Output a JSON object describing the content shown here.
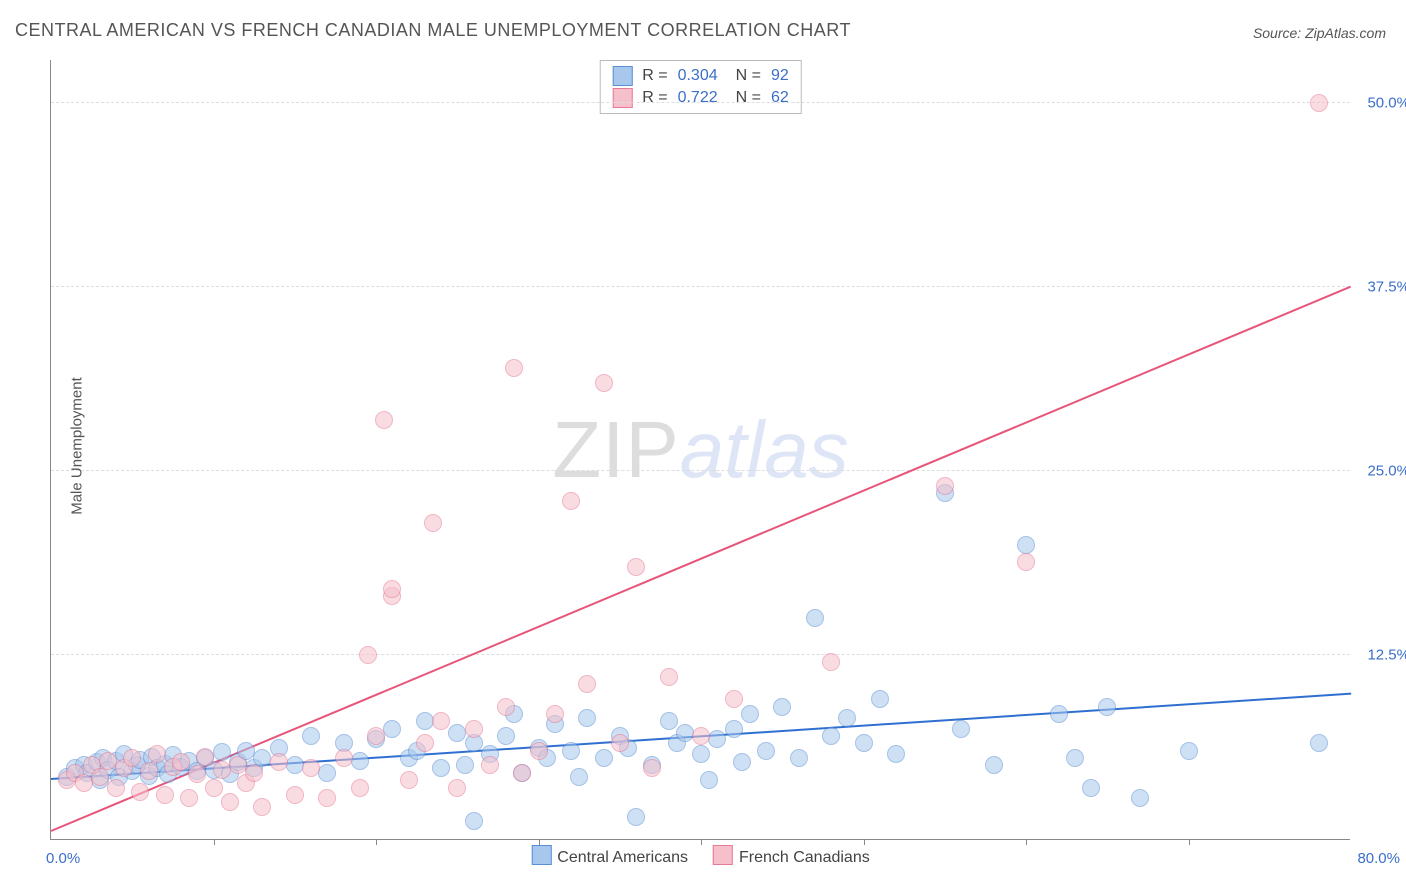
{
  "title": "CENTRAL AMERICAN VS FRENCH CANADIAN MALE UNEMPLOYMENT CORRELATION CHART",
  "source_label": "Source: ZipAtlas.com",
  "ylabel": "Male Unemployment",
  "watermark": {
    "part1": "ZIP",
    "part2": "atlas"
  },
  "chart": {
    "type": "scatter",
    "xlim": [
      0,
      80
    ],
    "ylim": [
      0,
      53
    ],
    "x_min_label": "0.0%",
    "x_max_label": "80.0%",
    "xtick_positions": [
      10,
      20,
      30,
      40,
      50,
      60,
      70
    ],
    "y_gridlines": [
      12.5,
      25.0,
      37.5,
      50.0
    ],
    "y_tick_labels": [
      "12.5%",
      "25.0%",
      "37.5%",
      "50.0%"
    ],
    "background_color": "#ffffff",
    "grid_color": "#dddddd",
    "axis_color": "#888888",
    "tick_label_color": "#3b6fc9",
    "marker_radius": 9,
    "marker_opacity": 0.55,
    "series": [
      {
        "id": "central_americans",
        "label": "Central Americans",
        "fill_color": "#a7c7ec",
        "stroke_color": "#5a8fd6",
        "trend_color": "#2f6fd0",
        "trend": {
          "x0": 0,
          "y0": 4.0,
          "x1": 80,
          "y1": 9.8
        },
        "stats": {
          "R": "0.304",
          "N": "92"
        },
        "points": [
          [
            1,
            4.2
          ],
          [
            1.5,
            4.8
          ],
          [
            2,
            5.0
          ],
          [
            2.2,
            4.5
          ],
          [
            2.8,
            5.2
          ],
          [
            3,
            4.0
          ],
          [
            3.2,
            5.5
          ],
          [
            3.5,
            4.7
          ],
          [
            4,
            5.3
          ],
          [
            4.2,
            4.2
          ],
          [
            4.5,
            5.8
          ],
          [
            5,
            4.6
          ],
          [
            5.3,
            5.0
          ],
          [
            5.5,
            5.4
          ],
          [
            6,
            4.3
          ],
          [
            6.2,
            5.6
          ],
          [
            6.5,
            4.8
          ],
          [
            7,
            5.1
          ],
          [
            7.2,
            4.4
          ],
          [
            7.5,
            5.7
          ],
          [
            8,
            4.9
          ],
          [
            8.5,
            5.3
          ],
          [
            9,
            4.6
          ],
          [
            9.5,
            5.5
          ],
          [
            10,
            4.7
          ],
          [
            10.5,
            5.9
          ],
          [
            11,
            4.4
          ],
          [
            11.5,
            5.2
          ],
          [
            12,
            6.0
          ],
          [
            12.5,
            4.8
          ],
          [
            13,
            5.5
          ],
          [
            14,
            6.2
          ],
          [
            15,
            5.0
          ],
          [
            16,
            7.0
          ],
          [
            17,
            4.5
          ],
          [
            18,
            6.5
          ],
          [
            19,
            5.3
          ],
          [
            20,
            6.8
          ],
          [
            21,
            7.5
          ],
          [
            22,
            5.5
          ],
          [
            22.5,
            6.0
          ],
          [
            23,
            8.0
          ],
          [
            24,
            4.8
          ],
          [
            25,
            7.2
          ],
          [
            25.5,
            5.0
          ],
          [
            26,
            6.5
          ],
          [
            26,
            1.2
          ],
          [
            27,
            5.8
          ],
          [
            28,
            7.0
          ],
          [
            28.5,
            8.5
          ],
          [
            29,
            4.5
          ],
          [
            30,
            6.2
          ],
          [
            30.5,
            5.5
          ],
          [
            31,
            7.8
          ],
          [
            32,
            6.0
          ],
          [
            32.5,
            4.2
          ],
          [
            33,
            8.2
          ],
          [
            34,
            5.5
          ],
          [
            35,
            7.0
          ],
          [
            35.5,
            6.2
          ],
          [
            36,
            1.5
          ],
          [
            37,
            5.0
          ],
          [
            38,
            8.0
          ],
          [
            38.5,
            6.5
          ],
          [
            39,
            7.2
          ],
          [
            40,
            5.8
          ],
          [
            40.5,
            4.0
          ],
          [
            41,
            6.8
          ],
          [
            42,
            7.5
          ],
          [
            42.5,
            5.2
          ],
          [
            43,
            8.5
          ],
          [
            44,
            6.0
          ],
          [
            45,
            9.0
          ],
          [
            46,
            5.5
          ],
          [
            47,
            15.0
          ],
          [
            48,
            7.0
          ],
          [
            49,
            8.2
          ],
          [
            50,
            6.5
          ],
          [
            51,
            9.5
          ],
          [
            52,
            5.8
          ],
          [
            55,
            23.5
          ],
          [
            56,
            7.5
          ],
          [
            58,
            5.0
          ],
          [
            60,
            20.0
          ],
          [
            62,
            8.5
          ],
          [
            63,
            5.5
          ],
          [
            64,
            3.5
          ],
          [
            65,
            9.0
          ],
          [
            67,
            2.8
          ],
          [
            70,
            6.0
          ],
          [
            78,
            6.5
          ]
        ]
      },
      {
        "id": "french_canadians",
        "label": "French Canadians",
        "fill_color": "#f5c0cb",
        "stroke_color": "#e77a95",
        "trend_color": "#e7557a",
        "trend": {
          "x0": 0,
          "y0": 0.5,
          "x1": 80,
          "y1": 37.5
        },
        "stats": {
          "R": "0.722",
          "N": "62"
        },
        "points": [
          [
            1,
            4.0
          ],
          [
            1.5,
            4.5
          ],
          [
            2,
            3.8
          ],
          [
            2.5,
            5.0
          ],
          [
            3,
            4.2
          ],
          [
            3.5,
            5.3
          ],
          [
            4,
            3.5
          ],
          [
            4.5,
            4.8
          ],
          [
            5,
            5.5
          ],
          [
            5.5,
            3.2
          ],
          [
            6,
            4.6
          ],
          [
            6.5,
            5.8
          ],
          [
            7,
            3.0
          ],
          [
            7.5,
            4.9
          ],
          [
            8,
            5.2
          ],
          [
            8.5,
            2.8
          ],
          [
            9,
            4.4
          ],
          [
            9.5,
            5.6
          ],
          [
            10,
            3.5
          ],
          [
            10.5,
            4.7
          ],
          [
            11,
            2.5
          ],
          [
            11.5,
            5.0
          ],
          [
            12,
            3.8
          ],
          [
            12.5,
            4.5
          ],
          [
            13,
            2.2
          ],
          [
            14,
            5.2
          ],
          [
            15,
            3.0
          ],
          [
            16,
            4.8
          ],
          [
            17,
            2.8
          ],
          [
            18,
            5.5
          ],
          [
            19,
            3.5
          ],
          [
            19.5,
            12.5
          ],
          [
            20,
            7.0
          ],
          [
            20.5,
            28.5
          ],
          [
            21,
            16.5
          ],
          [
            21,
            17.0
          ],
          [
            22,
            4.0
          ],
          [
            23,
            6.5
          ],
          [
            23.5,
            21.5
          ],
          [
            24,
            8.0
          ],
          [
            25,
            3.5
          ],
          [
            26,
            7.5
          ],
          [
            27,
            5.0
          ],
          [
            28,
            9.0
          ],
          [
            28.5,
            32.0
          ],
          [
            29,
            4.5
          ],
          [
            30,
            6.0
          ],
          [
            31,
            8.5
          ],
          [
            32,
            23.0
          ],
          [
            33,
            10.5
          ],
          [
            34,
            31.0
          ],
          [
            35,
            6.5
          ],
          [
            36,
            18.5
          ],
          [
            37,
            4.8
          ],
          [
            38,
            11.0
          ],
          [
            40,
            7.0
          ],
          [
            42,
            9.5
          ],
          [
            48,
            12.0
          ],
          [
            55,
            24.0
          ],
          [
            60,
            18.8
          ],
          [
            78,
            50.0
          ]
        ]
      }
    ]
  },
  "legend_bottom": [
    {
      "swatch_fill": "#a7c7ec",
      "swatch_stroke": "#5a8fd6",
      "label": "Central Americans"
    },
    {
      "swatch_fill": "#f5c0cb",
      "swatch_stroke": "#e77a95",
      "label": "French Canadians"
    }
  ]
}
